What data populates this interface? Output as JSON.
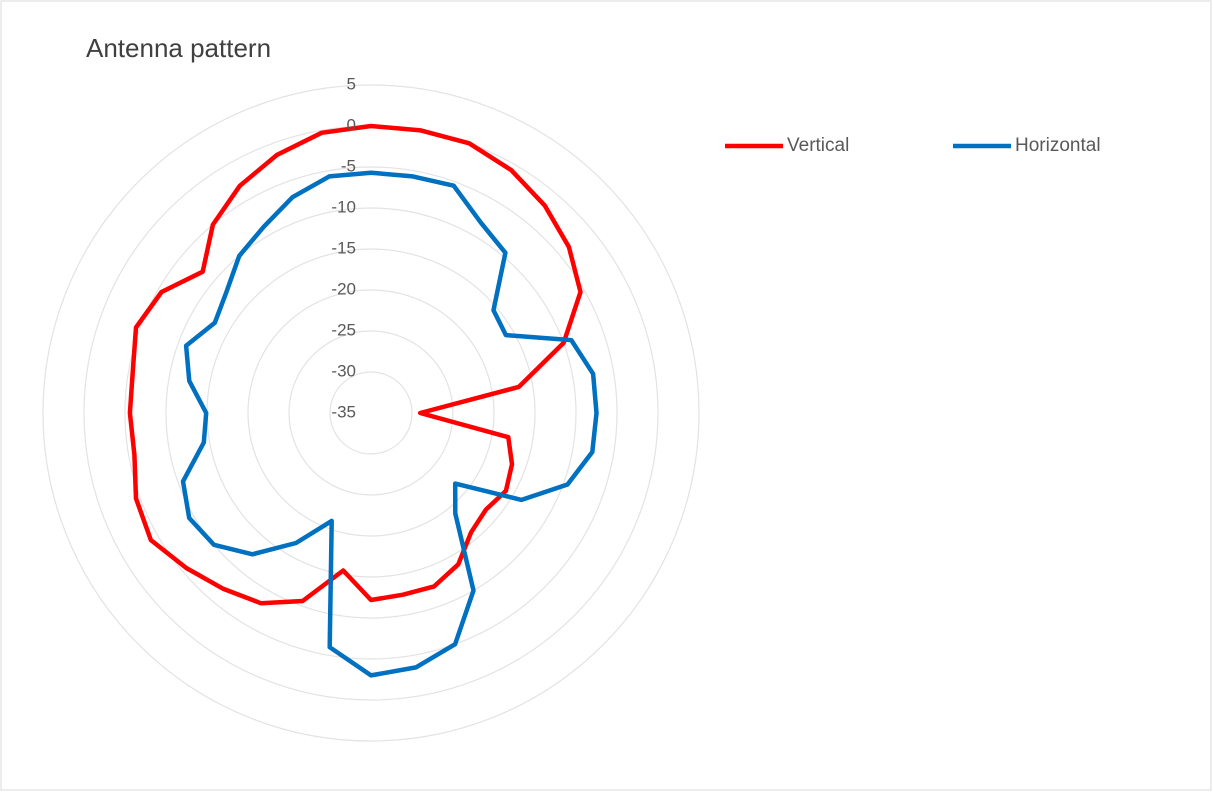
{
  "chart_data": {
    "type": "radar",
    "title": "Antenna pattern",
    "ylim": [
      -35,
      5
    ],
    "yticks": [
      -35,
      -30,
      -25,
      -20,
      -15,
      -10,
      -5,
      0,
      5
    ],
    "grid": true,
    "legend": "top-right",
    "series": [
      {
        "name": "Vertical",
        "color": "#ff0000",
        "values": [
          0,
          0,
          0,
          -0.8,
          -2,
          -3.5,
          -5.5,
          -10,
          -16.7,
          -29,
          -18,
          -16.7,
          -16,
          -16.7,
          -16,
          -13.7,
          -12.5,
          -12.5,
          -12.2,
          -15.5,
          -10.6,
          -8.2,
          -7,
          -5.6,
          -4,
          -4.5,
          -5.7,
          -5.6,
          -5.5,
          -4.5,
          -5.5,
          -8.2,
          -5,
          -3,
          -1.5,
          -0.3
        ]
      },
      {
        "name": "Horizontal",
        "color": "#0070c0",
        "values": [
          -5.7,
          -5.7,
          -5.5,
          -8.2,
          -9.5,
          -15.5,
          -16,
          -9,
          -7.5,
          -7.5,
          -7.6,
          -9.5,
          -13.8,
          -21.6,
          -19,
          -10,
          -5,
          -3.5,
          -3,
          -6,
          -21,
          -16.7,
          -12.5,
          -10,
          -9.4,
          -10.6,
          -14.3,
          -14.9,
          -12.5,
          -11,
          -13,
          -12,
          -10,
          -8.8,
          -7,
          -5.7
        ]
      }
    ]
  }
}
